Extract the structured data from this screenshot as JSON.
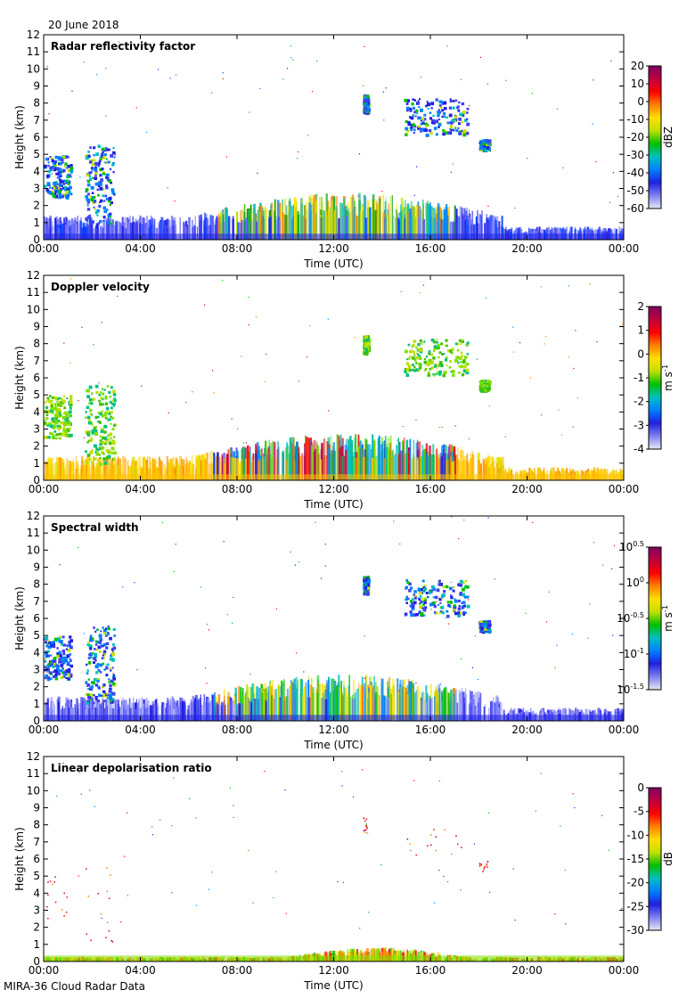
{
  "header": {
    "date": "20 June 2018"
  },
  "footer": {
    "caption": "MIRA-36 Cloud Radar Data"
  },
  "chart_data": [
    {
      "type": "heatmap",
      "title": "Radar reflectivity factor",
      "xlabel": "Time (UTC)",
      "ylabel": "Height (km)",
      "x_ticks": [
        "00:00",
        "04:00",
        "08:00",
        "12:00",
        "16:00",
        "20:00",
        "00:00"
      ],
      "xlim_hours": [
        0,
        24
      ],
      "ylim": [
        0,
        12
      ],
      "y_ticks": [
        0,
        1,
        2,
        3,
        4,
        5,
        6,
        7,
        8,
        9,
        10,
        11,
        12
      ],
      "colorbar": {
        "label": "dBZ",
        "ticks": [
          "20",
          "10",
          "0",
          "-10",
          "-20",
          "-30",
          "-40",
          "-50",
          "-60"
        ],
        "range": [
          -60,
          20
        ]
      }
    },
    {
      "type": "heatmap",
      "title": "Doppler velocity",
      "xlabel": "Time (UTC)",
      "ylabel": "Height (km)",
      "x_ticks": [
        "00:00",
        "04:00",
        "08:00",
        "12:00",
        "16:00",
        "20:00",
        "00:00"
      ],
      "xlim_hours": [
        0,
        24
      ],
      "ylim": [
        0,
        12
      ],
      "y_ticks": [
        0,
        1,
        2,
        3,
        4,
        5,
        6,
        7,
        8,
        9,
        10,
        11,
        12
      ],
      "colorbar": {
        "label": "m s",
        "label_sup": "-1",
        "ticks": [
          "2",
          "1",
          "0",
          "-1",
          "-2",
          "-3",
          "-4"
        ],
        "range": [
          -4,
          2
        ]
      }
    },
    {
      "type": "heatmap",
      "title": "Spectral width",
      "xlabel": "Time (UTC)",
      "ylabel": "Height (km)",
      "x_ticks": [
        "00:00",
        "04:00",
        "08:00",
        "12:00",
        "16:00",
        "20:00",
        "00:00"
      ],
      "xlim_hours": [
        0,
        24
      ],
      "ylim": [
        0,
        12
      ],
      "y_ticks": [
        0,
        1,
        2,
        3,
        4,
        5,
        6,
        7,
        8,
        9,
        10,
        11,
        12
      ],
      "colorbar": {
        "label": "m s",
        "label_sup": "-1",
        "log_ticks": [
          {
            "base": "10",
            "exp": "0.5"
          },
          {
            "base": "10",
            "exp": "0"
          },
          {
            "base": "10",
            "exp": "-0.5"
          },
          {
            "base": "10",
            "exp": "-1"
          },
          {
            "base": "10",
            "exp": "-1.5"
          }
        ],
        "range_log10": [
          -1.5,
          0.5
        ]
      }
    },
    {
      "type": "heatmap",
      "title": "Linear depolarisation ratio",
      "xlabel": "Time (UTC)",
      "ylabel": "Height (km)",
      "x_ticks": [
        "00:00",
        "04:00",
        "08:00",
        "12:00",
        "16:00",
        "20:00",
        "00:00"
      ],
      "xlim_hours": [
        0,
        24
      ],
      "ylim": [
        0,
        12
      ],
      "y_ticks": [
        0,
        1,
        2,
        3,
        4,
        5,
        6,
        7,
        8,
        9,
        10,
        11,
        12
      ],
      "colorbar": {
        "label": "dB",
        "ticks": [
          "0",
          "-5",
          "-10",
          "-15",
          "-20",
          "-25",
          "-30"
        ],
        "range": [
          -30,
          0
        ]
      }
    }
  ]
}
